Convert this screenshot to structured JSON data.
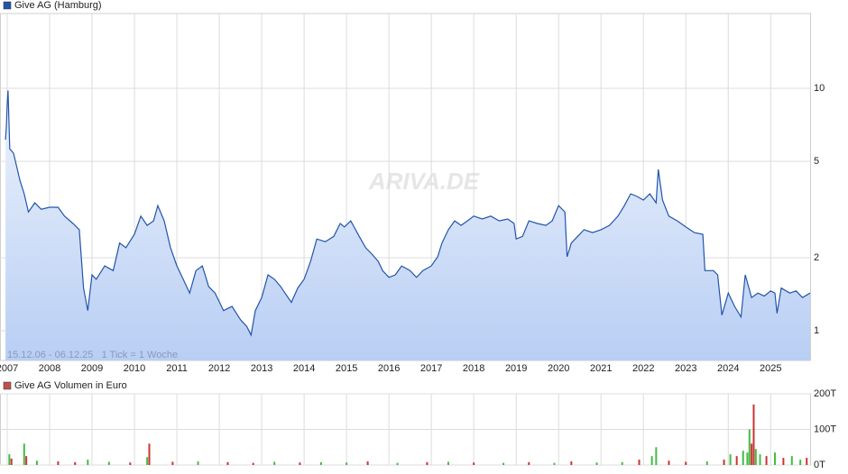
{
  "watermark": "ARIVA.DE",
  "chart_data": [
    {
      "type": "line",
      "log_scale": true,
      "grid": true,
      "note": "15.12.06 - 06.12.25   1 Tick = 1 Woche",
      "x": [
        2006.96,
        2006.98,
        2007.0,
        2007.02,
        2007.06,
        2007.15,
        2007.3,
        2007.4,
        2007.5,
        2007.65,
        2007.8,
        2008.0,
        2008.2,
        2008.35,
        2008.55,
        2008.7,
        2008.8,
        2008.9,
        2009.0,
        2009.1,
        2009.3,
        2009.5,
        2009.65,
        2009.8,
        2010.0,
        2010.15,
        2010.3,
        2010.45,
        2010.55,
        2010.7,
        2010.85,
        2011.0,
        2011.15,
        2011.3,
        2011.45,
        2011.6,
        2011.75,
        2011.9,
        2012.1,
        2012.3,
        2012.5,
        2012.65,
        2012.75,
        2012.85,
        2013.0,
        2013.15,
        2013.3,
        2013.45,
        2013.55,
        2013.7,
        2013.85,
        2014.0,
        2014.15,
        2014.3,
        2014.5,
        2014.7,
        2014.85,
        2014.95,
        2015.1,
        2015.3,
        2015.45,
        2015.6,
        2015.75,
        2015.85,
        2016.0,
        2016.15,
        2016.3,
        2016.5,
        2016.65,
        2016.8,
        2017.0,
        2017.15,
        2017.25,
        2017.4,
        2017.55,
        2017.7,
        2017.85,
        2018.0,
        2018.2,
        2018.4,
        2018.6,
        2018.8,
        2018.95,
        2019.0,
        2019.15,
        2019.3,
        2019.5,
        2019.7,
        2019.85,
        2020.0,
        2020.15,
        2020.2,
        2020.3,
        2020.45,
        2020.6,
        2020.8,
        2021.0,
        2021.2,
        2021.4,
        2021.55,
        2021.7,
        2021.85,
        2022.0,
        2022.15,
        2022.3,
        2022.35,
        2022.45,
        2022.6,
        2022.8,
        2023.0,
        2023.2,
        2023.4,
        2023.45,
        2023.65,
        2023.75,
        2023.85,
        2024.0,
        2024.15,
        2024.3,
        2024.4,
        2024.55,
        2024.7,
        2024.85,
        2025.0,
        2025.1,
        2025.15,
        2025.25,
        2025.45,
        2025.6,
        2025.75,
        2025.93
      ],
      "series": [
        {
          "name": "Give AG (Hamburg)",
          "color": "#2255aa",
          "values": [
            6.14,
            7.0,
            8.66,
            9.8,
            5.63,
            5.4,
            4.17,
            3.67,
            3.09,
            3.37,
            3.17,
            3.23,
            3.23,
            2.97,
            2.77,
            2.61,
            1.5,
            1.21,
            1.7,
            1.63,
            1.85,
            1.77,
            2.3,
            2.2,
            2.5,
            2.97,
            2.72,
            2.84,
            3.28,
            2.84,
            2.2,
            1.85,
            1.63,
            1.43,
            1.77,
            1.85,
            1.52,
            1.43,
            1.21,
            1.26,
            1.11,
            1.04,
            0.96,
            1.21,
            1.37,
            1.7,
            1.63,
            1.52,
            1.43,
            1.31,
            1.5,
            1.63,
            1.93,
            2.39,
            2.33,
            2.45,
            2.77,
            2.68,
            2.84,
            2.45,
            2.2,
            2.07,
            1.93,
            1.77,
            1.66,
            1.7,
            1.85,
            1.77,
            1.66,
            1.77,
            1.85,
            2.02,
            2.3,
            2.61,
            2.84,
            2.72,
            2.84,
            2.97,
            2.89,
            2.97,
            2.84,
            2.89,
            2.77,
            2.39,
            2.45,
            2.84,
            2.77,
            2.72,
            2.84,
            3.28,
            3.09,
            2.02,
            2.3,
            2.45,
            2.61,
            2.54,
            2.61,
            2.72,
            2.97,
            3.28,
            3.67,
            3.58,
            3.46,
            3.67,
            3.37,
            4.63,
            3.46,
            2.97,
            2.84,
            2.68,
            2.54,
            2.5,
            1.77,
            1.77,
            1.7,
            1.16,
            1.43,
            1.26,
            1.14,
            1.7,
            1.37,
            1.43,
            1.39,
            1.46,
            1.43,
            1.18,
            1.5,
            1.43,
            1.46,
            1.37,
            1.43
          ]
        }
      ],
      "xlim": [
        2006.83,
        2025.93
      ],
      "xticks": [
        2007,
        2008,
        2009,
        2010,
        2011,
        2012,
        2013,
        2014,
        2015,
        2016,
        2017,
        2018,
        2019,
        2020,
        2021,
        2022,
        2023,
        2024,
        2025
      ],
      "ylim": [
        0.754,
        20.35
      ],
      "yticks": [
        1,
        2,
        5,
        10
      ]
    },
    {
      "type": "bar",
      "grid": true,
      "x": [
        2007.05,
        2007.1,
        2007.4,
        2007.45,
        2007.7,
        2008.2,
        2008.6,
        2008.9,
        2009.4,
        2009.9,
        2010.3,
        2010.35,
        2010.9,
        2011.5,
        2012.2,
        2012.8,
        2013.3,
        2013.9,
        2014.4,
        2015.0,
        2015.5,
        2016.2,
        2016.9,
        2017.4,
        2018.0,
        2018.7,
        2019.3,
        2019.9,
        2020.3,
        2020.9,
        2021.5,
        2021.9,
        2022.2,
        2022.3,
        2022.6,
        2023.0,
        2023.5,
        2023.9,
        2024.05,
        2024.2,
        2024.35,
        2024.45,
        2024.5,
        2024.55,
        2024.6,
        2024.65,
        2024.75,
        2024.9,
        2025.1,
        2025.3,
        2025.5,
        2025.7,
        2025.85
      ],
      "series": [
        {
          "name": "Give AG Volumen in Euro",
          "color": "#c0504d",
          "values": [
            30000,
            18000,
            60000,
            25000,
            12000,
            10000,
            8000,
            15000,
            9000,
            7000,
            22000,
            60000,
            9000,
            10000,
            8000,
            6000,
            9000,
            7000,
            8000,
            7000,
            10000,
            6000,
            8000,
            9000,
            7000,
            6000,
            8000,
            6000,
            10000,
            7000,
            8000,
            15000,
            25000,
            50000,
            12000,
            9000,
            10000,
            15000,
            30000,
            25000,
            40000,
            35000,
            100000,
            60000,
            170000,
            45000,
            30000,
            25000,
            35000,
            20000,
            25000,
            15000,
            20000
          ],
          "colors": [
            "#44bb44",
            "#cc3333",
            "#44bb44",
            "#cc3333",
            "#44bb44",
            "#cc3333",
            "#cc3333",
            "#44bb44",
            "#44bb44",
            "#cc3333",
            "#44bb44",
            "#cc3333",
            "#cc3333",
            "#44bb44",
            "#cc3333",
            "#cc3333",
            "#44bb44",
            "#cc3333",
            "#44bb44",
            "#44bb44",
            "#cc3333",
            "#44bb44",
            "#cc3333",
            "#44bb44",
            "#cc3333",
            "#44bb44",
            "#cc3333",
            "#44bb44",
            "#cc3333",
            "#44bb44",
            "#44bb44",
            "#cc3333",
            "#44bb44",
            "#44bb44",
            "#cc3333",
            "#cc3333",
            "#44bb44",
            "#cc3333",
            "#44bb44",
            "#cc3333",
            "#44bb44",
            "#44bb44",
            "#44bb44",
            "#cc3333",
            "#cc3333",
            "#44bb44",
            "#44bb44",
            "#cc3333",
            "#44bb44",
            "#cc3333",
            "#44bb44",
            "#44bb44",
            "#cc3333"
          ]
        }
      ],
      "xlim": [
        2006.83,
        2025.93
      ],
      "xticks": [
        2007,
        2008,
        2009,
        2010,
        2011,
        2012,
        2013,
        2014,
        2015,
        2016,
        2017,
        2018,
        2019,
        2020,
        2021,
        2022,
        2023,
        2024,
        2025
      ],
      "ylim": [
        0,
        200000
      ],
      "yticks": [
        {
          "value": 0,
          "label": "0T"
        },
        {
          "value": 100000,
          "label": "100T"
        },
        {
          "value": 200000,
          "label": "200T"
        }
      ]
    }
  ]
}
